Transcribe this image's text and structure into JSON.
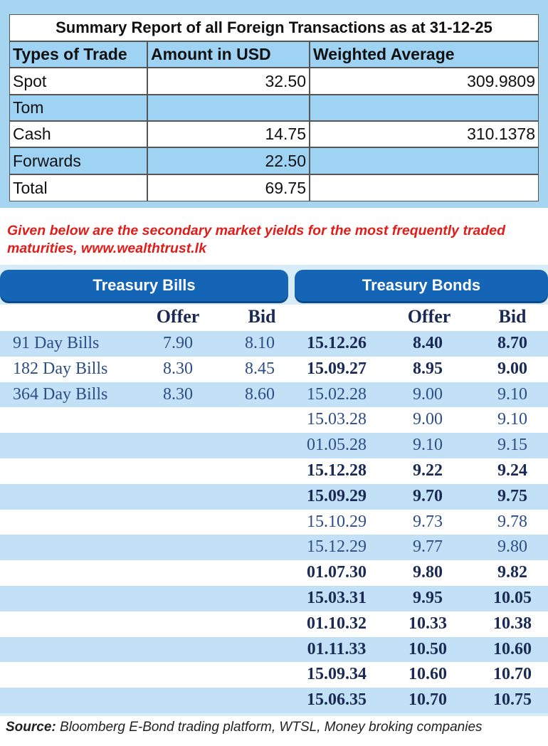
{
  "summary": {
    "title": "Summary Report of all Foreign Transactions as at 31-12-25",
    "columns": [
      "Types of Trade",
      "Amount in USD",
      "Weighted Average"
    ],
    "rows": [
      [
        "Spot",
        "32.50",
        "309.9809"
      ],
      [
        "Tom",
        null,
        null
      ],
      [
        "Cash",
        "14.75",
        "310.1378"
      ],
      [
        "Forwards",
        "22.50",
        null
      ],
      [
        "Total",
        "69.75",
        null
      ]
    ]
  },
  "note": "Given below are the secondary market yields for the most frequently traded maturities, www.wealthtrust.lk",
  "bills": {
    "title": "Treasury Bills",
    "columns": [
      "Offer",
      "Bid"
    ],
    "rows": [
      [
        "91 Day Bills",
        "7.90",
        "8.10"
      ],
      [
        "182 Day Bills",
        "8.30",
        "8.45"
      ],
      [
        "364 Day Bills",
        "8.30",
        "8.60"
      ]
    ]
  },
  "bonds": {
    "title": "Treasury Bonds",
    "columns": [
      "Offer",
      "Bid"
    ],
    "rows": [
      [
        "15.12.26",
        "8.40",
        "8.70"
      ],
      [
        "15.09.27",
        "8.95",
        "9.00"
      ],
      [
        "15.02.28",
        "9.00",
        "9.10"
      ],
      [
        "15.03.28",
        "9.00",
        "9.10"
      ],
      [
        "01.05.28",
        "9.10",
        "9.15"
      ],
      [
        "15.12.28",
        "9.22",
        "9.24"
      ],
      [
        "15.09.29",
        "9.70",
        "9.75"
      ],
      [
        "15.10.29",
        "9.73",
        "9.78"
      ],
      [
        "15.12.29",
        "9.77",
        "9.80"
      ],
      [
        "01.07.30",
        "9.80",
        "9.82"
      ],
      [
        "15.03.31",
        "9.95",
        "10.05"
      ],
      [
        "01.10.32",
        "10.33",
        "10.38"
      ],
      [
        "01.11.33",
        "10.50",
        "10.60"
      ],
      [
        "15.09.34",
        "10.60",
        "10.70"
      ],
      [
        "15.06.35",
        "10.70",
        "10.75"
      ]
    ]
  },
  "source": {
    "label": "Source:",
    "text": "Bloomberg E-Bond trading platform, WTSL, Money broking companies"
  }
}
